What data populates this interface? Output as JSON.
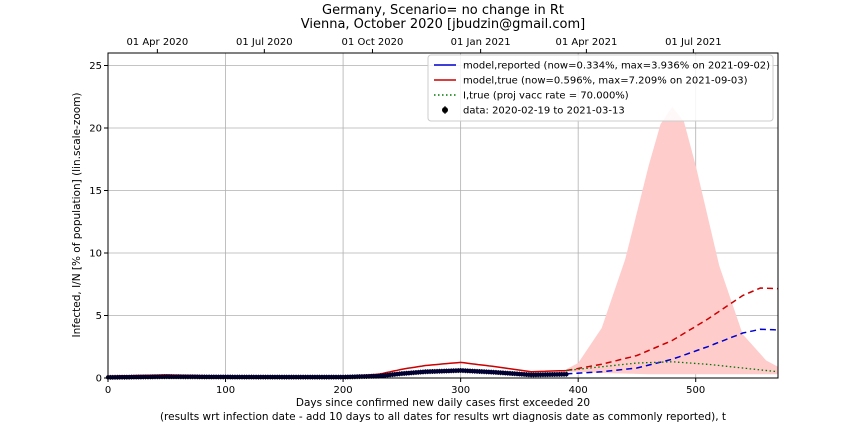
{
  "chart_data": {
    "type": "line",
    "title": "Germany, Scenario= no change in Rt",
    "subtitle": "Vienna, October 2020 [jbudzin@gmail.com]",
    "xlabel": "Days since confirmed new daily cases first exceeded 20",
    "xlabel2": "(results wrt infection date - add 10 days to all dates for results wrt diagnosis date as commonly reported), t",
    "ylabel": "Infected, I/N [% of population] (lin.scale-zoom)",
    "xlim": [
      0,
      570
    ],
    "ylim": [
      0,
      26
    ],
    "xticks": [
      0,
      100,
      200,
      300,
      400,
      500
    ],
    "yticks": [
      0,
      5,
      10,
      15,
      20,
      25
    ],
    "top_axis_ticks": [
      {
        "label": "01 Apr 2020",
        "day": 42
      },
      {
        "label": "01 Jul 2020",
        "day": 133
      },
      {
        "label": "01 Oct 2020",
        "day": 225
      },
      {
        "label": "01 Jan 2021",
        "day": 317
      },
      {
        "label": "01 Apr 2021",
        "day": 407
      },
      {
        "label": "01 Jul 2021",
        "day": 498
      }
    ],
    "grid": true,
    "legend_position": "top-right",
    "legend": [
      {
        "label": "model,reported (now=0.334%, max=3.936% on 2021-09-02)",
        "color": "#0000cc",
        "style": "solid"
      },
      {
        "label": "model,true (now=0.596%, max=7.209% on 2021-09-03)",
        "color": "#cc0000",
        "style": "solid"
      },
      {
        "label": "I,true (proj vacc rate = 70.000%)",
        "color": "#007700",
        "style": "dotted"
      },
      {
        "label": "data: 2020-02-19 to 2021-03-13",
        "color": "#000000",
        "style": "marker"
      }
    ],
    "series": [
      {
        "key": "reported",
        "color": "#0000cc",
        "fit": {
          "x": [
            0,
            50,
            100,
            150,
            200,
            230,
            250,
            270,
            300,
            330,
            360,
            390,
            420,
            450,
            480,
            510,
            540,
            555,
            570
          ],
          "y": [
            0.1,
            0.15,
            0.1,
            0.08,
            0.08,
            0.15,
            0.35,
            0.5,
            0.65,
            0.5,
            0.3,
            0.334,
            0.5,
            0.8,
            1.5,
            2.5,
            3.6,
            3.9,
            3.85
          ]
        },
        "projection_from": 390
      },
      {
        "key": "true",
        "color": "#cc0000",
        "fit": {
          "x": [
            0,
            50,
            100,
            150,
            200,
            230,
            250,
            270,
            300,
            330,
            360,
            390,
            420,
            450,
            480,
            510,
            540,
            555,
            570
          ],
          "y": [
            0.15,
            0.25,
            0.15,
            0.12,
            0.12,
            0.3,
            0.7,
            1.0,
            1.25,
            0.9,
            0.5,
            0.596,
            1.1,
            1.8,
            3.0,
            4.7,
            6.6,
            7.2,
            7.15
          ]
        },
        "projection_from": 390
      },
      {
        "key": "vacc",
        "color": "#007700",
        "dotted": {
          "x": [
            390,
            420,
            450,
            480,
            510,
            540,
            570
          ],
          "y": [
            0.6,
            0.9,
            1.2,
            1.3,
            1.1,
            0.8,
            0.5
          ]
        }
      }
    ],
    "band": {
      "color": "#ffcccc",
      "x": [
        390,
        400,
        420,
        440,
        460,
        470,
        480,
        490,
        500,
        520,
        540,
        560,
        570
      ],
      "upper": [
        0.7,
        1.2,
        4.0,
        9.5,
        17.0,
        20.3,
        21.7,
        20.5,
        17.0,
        9.0,
        3.5,
        1.4,
        0.9
      ],
      "lower": [
        0.5,
        0.5,
        0.4,
        0.35,
        0.3,
        0.3,
        0.3,
        0.3,
        0.3,
        0.3,
        0.3,
        0.3,
        0.3
      ]
    },
    "data_points": {
      "x_start": 0,
      "x_end": 390,
      "y": {
        "x": [
          0,
          50,
          100,
          150,
          200,
          230,
          250,
          270,
          300,
          330,
          360,
          390
        ],
        "v": [
          0.05,
          0.1,
          0.08,
          0.07,
          0.07,
          0.15,
          0.35,
          0.5,
          0.6,
          0.45,
          0.25,
          0.3
        ]
      }
    }
  }
}
